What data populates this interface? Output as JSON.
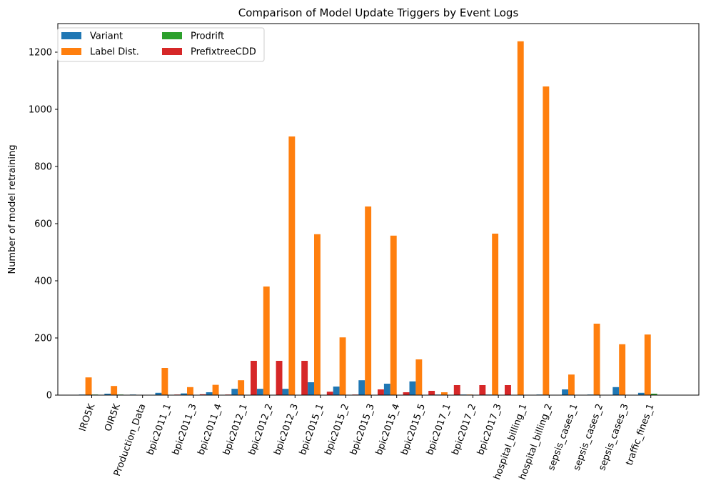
{
  "chart_data": {
    "type": "bar",
    "title": "Comparison of Model Update Triggers by Event Logs",
    "xlabel": "",
    "ylabel": "Number of model retraining",
    "ylim": [
      0,
      1300
    ],
    "yticks": [
      0,
      200,
      400,
      600,
      800,
      1000,
      1200
    ],
    "grid": false,
    "legend": {
      "placement": "top-left",
      "columns": 2
    },
    "categories": [
      "IRO5K",
      "OIR5K",
      "Production_Data",
      "bpic2011_1",
      "bpic2011_3",
      "bpic2011_4",
      "bpic2012_1",
      "bpic2012_2",
      "bpic2012_3",
      "bpic2015_1",
      "bpic2015_2",
      "bpic2015_3",
      "bpic2015_4",
      "bpic2015_5",
      "bpic2017_1",
      "bpic2017_2",
      "bpic2017_3",
      "hospital_billing_1",
      "hospital_billing_2",
      "sepsis_cases_1",
      "sepsis_cases_2",
      "sepsis_cases_3",
      "traffic_fines_1"
    ],
    "series": [
      {
        "name": "Variant",
        "color": "#1f77b4",
        "values": [
          2,
          5,
          2,
          8,
          6,
          10,
          22,
          22,
          22,
          45,
          30,
          52,
          40,
          48,
          2,
          2,
          2,
          0,
          2,
          20,
          2,
          28,
          8
        ]
      },
      {
        "name": "Label Dist.",
        "color": "#ff7f0e",
        "values": [
          62,
          32,
          0,
          95,
          28,
          36,
          52,
          380,
          905,
          563,
          202,
          660,
          558,
          125,
          10,
          2,
          565,
          1238,
          1080,
          72,
          250,
          178,
          212
        ]
      },
      {
        "name": "Prodrift",
        "color": "#2ca02c",
        "values": [
          2,
          2,
          0,
          0,
          0,
          0,
          0,
          0,
          0,
          0,
          0,
          0,
          0,
          0,
          0,
          0,
          0,
          0,
          0,
          0,
          0,
          0,
          5
        ]
      },
      {
        "name": "PrefixtreeCDD",
        "color": "#d62728",
        "values": [
          0,
          0,
          0,
          2,
          3,
          2,
          120,
          120,
          120,
          12,
          2,
          20,
          10,
          15,
          35,
          35,
          35,
          0,
          0,
          0,
          0,
          0,
          0
        ]
      }
    ]
  }
}
